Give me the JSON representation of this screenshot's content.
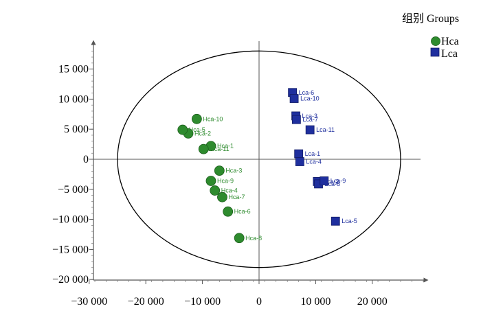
{
  "chart_data": {
    "type": "scatter",
    "title": "",
    "xlabel": "",
    "ylabel": "",
    "xlim": [
      -30000,
      30000
    ],
    "ylim": [
      -20000,
      20000
    ],
    "x_ticks": [
      -30000,
      -20000,
      -10000,
      0,
      10000,
      20000
    ],
    "x_tick_labels": [
      "−30 000",
      "−20 000",
      "−10 000",
      "0",
      "10 000",
      "20 000"
    ],
    "y_ticks": [
      15000,
      10000,
      5000,
      0,
      -5000,
      -10000,
      -15000,
      -20000
    ],
    "y_tick_labels": [
      "15 000",
      "10 000",
      "5 000",
      "0",
      "−5 000",
      "−10 000",
      "−15 000",
      "−20 000"
    ],
    "grid": false,
    "legend_title": "组别 Groups",
    "legend_position": "top-right",
    "ellipse": {
      "cx": 0,
      "cy": 0,
      "rx": 25000,
      "ry": 18000
    },
    "series": [
      {
        "name": "Hca",
        "color": "#2e8b2e",
        "marker": "circle",
        "points": [
          {
            "label": "Hca-1",
            "x": -8500,
            "y": 2200
          },
          {
            "label": "Hca-2",
            "x": -12500,
            "y": 4300
          },
          {
            "label": "Hca-3",
            "x": -7000,
            "y": -1900
          },
          {
            "label": "Hca-4",
            "x": -7800,
            "y": -5200
          },
          {
            "label": "Hca-5",
            "x": -13500,
            "y": 4900
          },
          {
            "label": "Hca-6",
            "x": -5500,
            "y": -8700
          },
          {
            "label": "Hca-7",
            "x": -6500,
            "y": -6300
          },
          {
            "label": "Hca-8",
            "x": -3500,
            "y": -13100
          },
          {
            "label": "Hca-9",
            "x": -8500,
            "y": -3600
          },
          {
            "label": "Hca-10",
            "x": -11000,
            "y": 6700
          },
          {
            "label": "Hca-11",
            "x": -9800,
            "y": 1700
          }
        ]
      },
      {
        "name": "Lca",
        "color": "#1f2f9e",
        "marker": "square",
        "points": [
          {
            "label": "Lca-1",
            "x": 7000,
            "y": 900
          },
          {
            "label": "Lca-2",
            "x": 10300,
            "y": -3700
          },
          {
            "label": "Lca-3",
            "x": 6500,
            "y": 7200
          },
          {
            "label": "Lca-4",
            "x": 7200,
            "y": -400
          },
          {
            "label": "Lca-5",
            "x": 13500,
            "y": -10300
          },
          {
            "label": "Lca-6",
            "x": 5900,
            "y": 11100
          },
          {
            "label": "Lca-7",
            "x": 6600,
            "y": 6600
          },
          {
            "label": "Lca-8",
            "x": 10500,
            "y": -4100
          },
          {
            "label": "Lca-9",
            "x": 11500,
            "y": -3600
          },
          {
            "label": "Lca-10",
            "x": 6200,
            "y": 10100
          },
          {
            "label": "Lca-11",
            "x": 9000,
            "y": 4900
          }
        ]
      }
    ]
  }
}
